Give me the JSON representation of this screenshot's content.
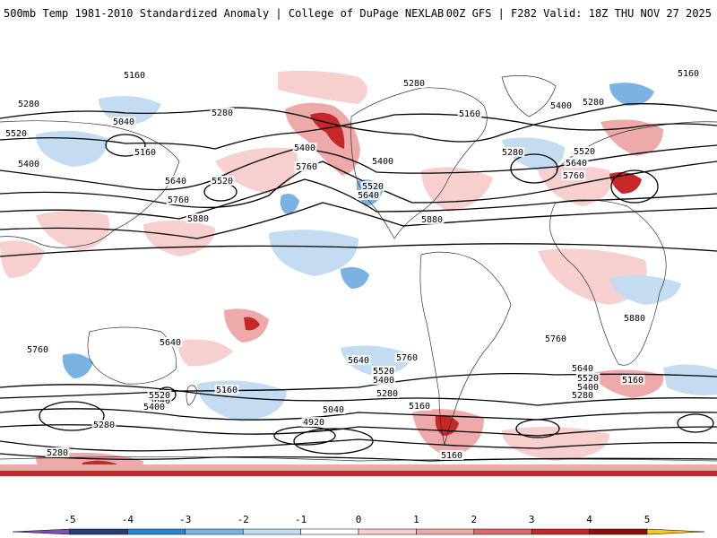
{
  "header": {
    "title_left": "500mb Temp 1981-2010 Standardized Anomaly | College of DuPage NEXLAB",
    "title_right": "00Z GFS | F282 Valid: 18Z THU NOV 27 2025"
  },
  "map": {
    "projection": "global cylindrical",
    "contour_labels": [
      {
        "id": "c1",
        "text": "5160"
      },
      {
        "id": "c2",
        "text": "5280"
      },
      {
        "id": "c3",
        "text": "5040"
      },
      {
        "id": "c4",
        "text": "5520"
      },
      {
        "id": "c5",
        "text": "5400"
      },
      {
        "id": "c6",
        "text": "5160"
      },
      {
        "id": "c7",
        "text": "5280"
      },
      {
        "id": "c8",
        "text": "5400"
      },
      {
        "id": "c9",
        "text": "5640"
      },
      {
        "id": "c10",
        "text": "5520"
      },
      {
        "id": "c11",
        "text": "5760"
      },
      {
        "id": "c12",
        "text": "5880"
      },
      {
        "id": "c13",
        "text": "5760"
      },
      {
        "id": "c14",
        "text": "5280"
      },
      {
        "id": "c15",
        "text": "5160"
      },
      {
        "id": "c16",
        "text": "5400"
      },
      {
        "id": "c17",
        "text": "5520"
      },
      {
        "id": "c18",
        "text": "5640"
      },
      {
        "id": "c19",
        "text": "5880"
      },
      {
        "id": "c20",
        "text": "5160"
      },
      {
        "id": "c21",
        "text": "5400"
      },
      {
        "id": "c22",
        "text": "5280"
      },
      {
        "id": "c23",
        "text": "5280"
      },
      {
        "id": "c24",
        "text": "5520"
      },
      {
        "id": "c25",
        "text": "5640"
      },
      {
        "id": "c26",
        "text": "5760"
      },
      {
        "id": "c27",
        "text": "5880"
      },
      {
        "id": "c28",
        "text": "5760"
      },
      {
        "id": "c29",
        "text": "5640"
      },
      {
        "id": "c30",
        "text": "5760"
      },
      {
        "id": "c31",
        "text": "5640"
      },
      {
        "id": "c32",
        "text": "5760"
      },
      {
        "id": "c33",
        "text": "5520"
      },
      {
        "id": "c34",
        "text": "5160"
      },
      {
        "id": "c35",
        "text": "5400"
      },
      {
        "id": "c36",
        "text": "5640"
      },
      {
        "id": "c37",
        "text": "5520"
      },
      {
        "id": "c38",
        "text": "5400"
      },
      {
        "id": "c39",
        "text": "5280"
      },
      {
        "id": "c40",
        "text": "5040"
      },
      {
        "id": "c41",
        "text": "4920"
      },
      {
        "id": "c42",
        "text": "5160"
      },
      {
        "id": "c43",
        "text": "5640"
      },
      {
        "id": "c44",
        "text": "5520"
      },
      {
        "id": "c45",
        "text": "5400"
      },
      {
        "id": "c46",
        "text": "5280"
      },
      {
        "id": "c47",
        "text": "5160"
      },
      {
        "id": "c48",
        "text": "5280"
      },
      {
        "id": "c49",
        "text": "5280"
      },
      {
        "id": "c50",
        "text": "5160"
      }
    ],
    "colors": {
      "neg5": "#7b4fb8",
      "neg4": "#243f78",
      "neg3": "#2a86cf",
      "neg2": "#7ab3e2",
      "neg1": "#c3dcf2",
      "pos1": "#f7cfcf",
      "pos2": "#eeaaaa",
      "pos3": "#db6a6a",
      "pos4": "#c52828",
      "pos5": "#8a0f0f",
      "over": "#f4c81e",
      "contour": "#000000",
      "coast": "#333333"
    }
  },
  "colorbar": {
    "ticks": [
      "-5",
      "-4",
      "-3",
      "-2",
      "-1",
      "0",
      "1",
      "2",
      "3",
      "4",
      "5"
    ]
  }
}
